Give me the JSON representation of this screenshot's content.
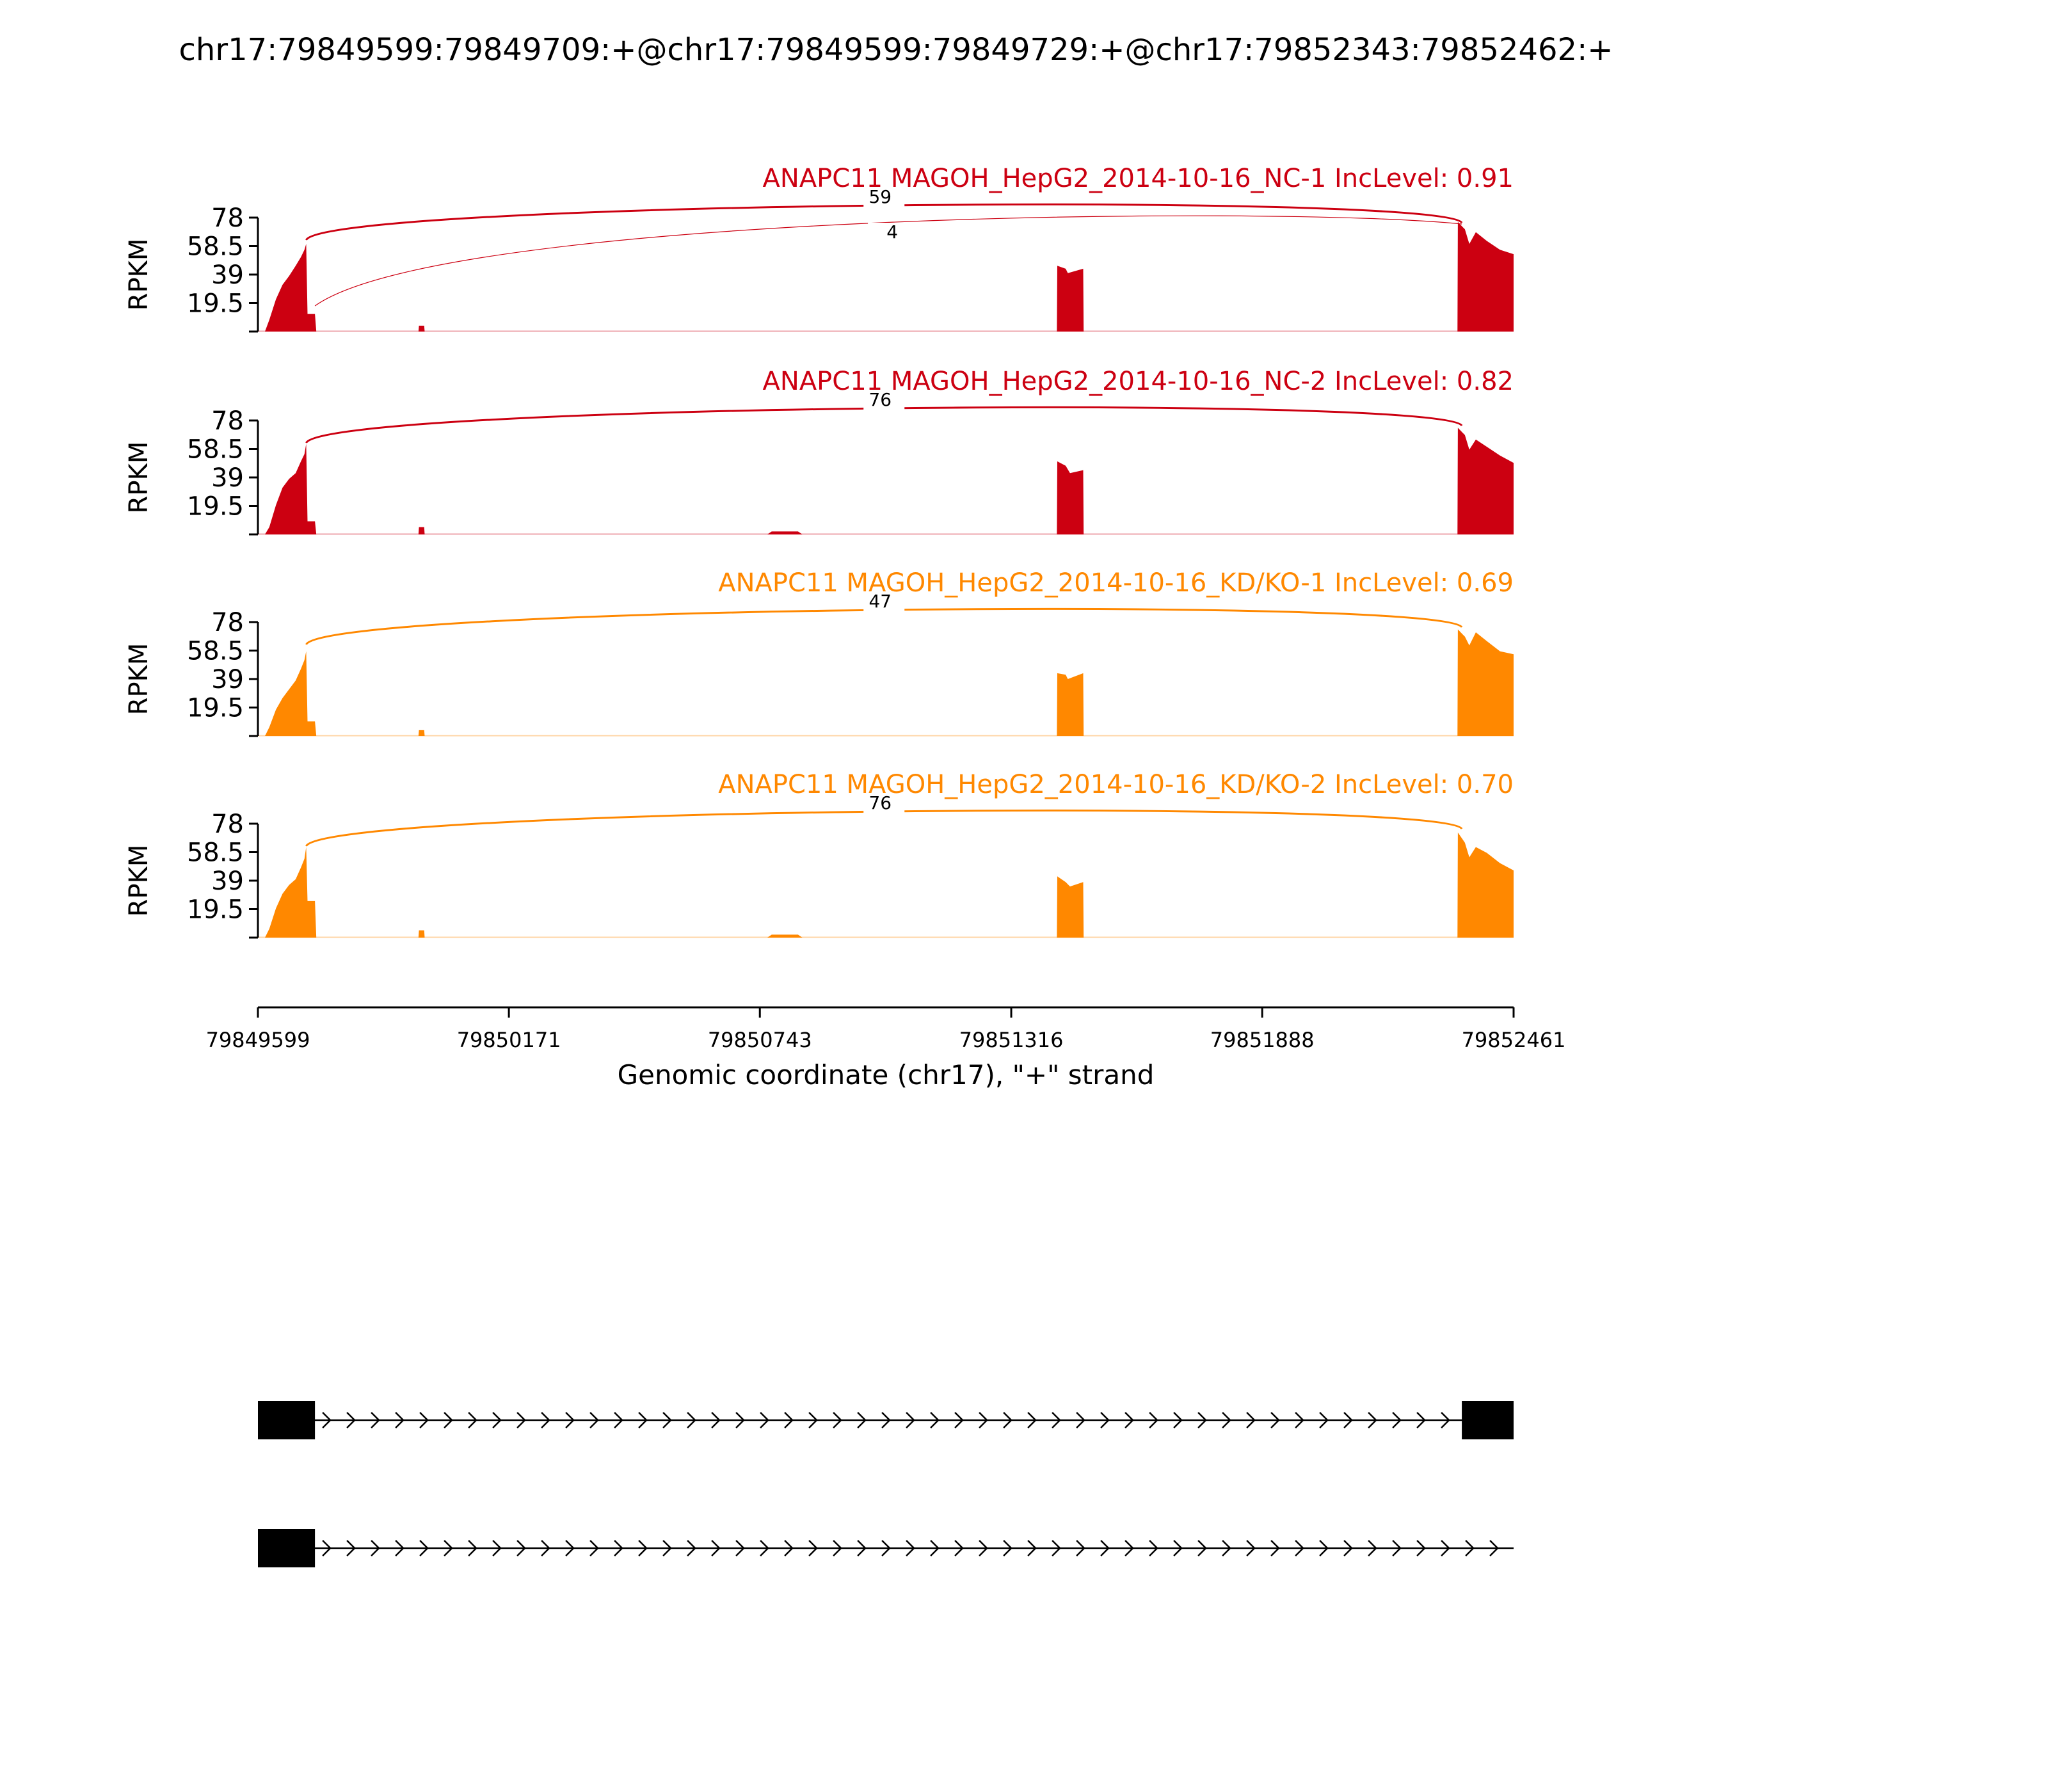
{
  "chart_data": {
    "type": "area",
    "title": "chr17:79849599:79849709:+@chr17:79849599:79849729:+@chr17:79852343:79852462:+",
    "xlabel": "Genomic coordinate (chr17), \"+\" strand",
    "ylabel": "RPKM",
    "xlim": [
      79849599,
      79852461
    ],
    "ylim": [
      0,
      78
    ],
    "x_ticks": [
      "79849599",
      "79850171",
      "79850743",
      "79851316",
      "79851888",
      "79852461"
    ],
    "y_ticks": [
      "19.5",
      "39",
      "58.5",
      "78"
    ],
    "panels": [
      {
        "title": "ANAPC11 MAGOH_HepG2_2014-10-16_NC-1 IncLevel: 0.91",
        "color": "#cc0011",
        "junctions": [
          {
            "start": 79849709,
            "end": 79852343,
            "count": "59",
            "weight": "heavy"
          },
          {
            "start": 79849729,
            "end": 79852343,
            "count": "4",
            "weight": "light"
          }
        ],
        "coverage": [
          [
            79849615,
            0
          ],
          [
            79849625,
            8
          ],
          [
            79849640,
            22
          ],
          [
            79849655,
            32
          ],
          [
            79849670,
            38
          ],
          [
            79849685,
            45
          ],
          [
            79849697,
            51
          ],
          [
            79849705,
            56
          ],
          [
            79849709,
            60
          ],
          [
            79849712,
            12
          ],
          [
            79849729,
            12
          ],
          [
            79849732,
            0
          ],
          [
            79849965,
            0
          ],
          [
            79849966,
            4
          ],
          [
            79849978,
            4
          ],
          [
            79849979,
            0
          ],
          [
            79851420,
            0
          ],
          [
            79851421,
            45
          ],
          [
            79851440,
            43
          ],
          [
            79851445,
            40
          ],
          [
            79851480,
            43
          ],
          [
            79851481,
            0
          ],
          [
            79852333,
            0
          ],
          [
            79852334,
            75
          ],
          [
            79852350,
            70
          ],
          [
            79852360,
            60
          ],
          [
            79852375,
            68
          ],
          [
            79852400,
            62
          ],
          [
            79852430,
            56
          ],
          [
            79852461,
            53
          ]
        ]
      },
      {
        "title": "ANAPC11 MAGOH_HepG2_2014-10-16_NC-2 IncLevel: 0.82",
        "color": "#cc0011",
        "junctions": [
          {
            "start": 79849709,
            "end": 79852343,
            "count": "76",
            "weight": "heavy"
          }
        ],
        "coverage": [
          [
            79849615,
            0
          ],
          [
            79849625,
            5
          ],
          [
            79849640,
            20
          ],
          [
            79849655,
            32
          ],
          [
            79849670,
            38
          ],
          [
            79849685,
            42
          ],
          [
            79849697,
            50
          ],
          [
            79849705,
            55
          ],
          [
            79849709,
            62
          ],
          [
            79849712,
            9
          ],
          [
            79849729,
            9
          ],
          [
            79849732,
            0
          ],
          [
            79849965,
            0
          ],
          [
            79849966,
            5
          ],
          [
            79849978,
            5
          ],
          [
            79849979,
            0
          ],
          [
            79850760,
            0
          ],
          [
            79850770,
            2
          ],
          [
            79850830,
            2
          ],
          [
            79850840,
            0
          ],
          [
            79851420,
            0
          ],
          [
            79851421,
            50
          ],
          [
            79851440,
            47
          ],
          [
            79851450,
            42
          ],
          [
            79851480,
            44
          ],
          [
            79851481,
            0
          ],
          [
            79852333,
            0
          ],
          [
            79852334,
            73
          ],
          [
            79852350,
            68
          ],
          [
            79852360,
            58
          ],
          [
            79852375,
            65
          ],
          [
            79852400,
            60
          ],
          [
            79852430,
            54
          ],
          [
            79852461,
            49
          ]
        ]
      },
      {
        "title": "ANAPC11 MAGOH_HepG2_2014-10-16_KD/KO-1 IncLevel: 0.69",
        "color": "#ff8800",
        "junctions": [
          {
            "start": 79849709,
            "end": 79852343,
            "count": "47",
            "weight": "heavy"
          }
        ],
        "coverage": [
          [
            79849615,
            0
          ],
          [
            79849625,
            6
          ],
          [
            79849640,
            18
          ],
          [
            79849655,
            26
          ],
          [
            79849670,
            32
          ],
          [
            79849685,
            38
          ],
          [
            79849697,
            46
          ],
          [
            79849705,
            52
          ],
          [
            79849709,
            58
          ],
          [
            79849712,
            10
          ],
          [
            79849729,
            10
          ],
          [
            79849732,
            0
          ],
          [
            79849965,
            0
          ],
          [
            79849966,
            4
          ],
          [
            79849978,
            4
          ],
          [
            79849979,
            0
          ],
          [
            79851420,
            0
          ],
          [
            79851421,
            43
          ],
          [
            79851440,
            42
          ],
          [
            79851445,
            39
          ],
          [
            79851480,
            43
          ],
          [
            79851481,
            0
          ],
          [
            79852333,
            0
          ],
          [
            79852334,
            73
          ],
          [
            79852350,
            68
          ],
          [
            79852360,
            62
          ],
          [
            79852375,
            71
          ],
          [
            79852400,
            65
          ],
          [
            79852430,
            58
          ],
          [
            79852461,
            56
          ]
        ]
      },
      {
        "title": "ANAPC11 MAGOH_HepG2_2014-10-16_KD/KO-2 IncLevel: 0.70",
        "color": "#ff8800",
        "junctions": [
          {
            "start": 79849709,
            "end": 79852343,
            "count": "76",
            "weight": "heavy"
          }
        ],
        "coverage": [
          [
            79849615,
            0
          ],
          [
            79849625,
            6
          ],
          [
            79849640,
            20
          ],
          [
            79849655,
            30
          ],
          [
            79849670,
            36
          ],
          [
            79849685,
            40
          ],
          [
            79849697,
            48
          ],
          [
            79849705,
            54
          ],
          [
            79849709,
            62
          ],
          [
            79849712,
            25
          ],
          [
            79849729,
            25
          ],
          [
            79849732,
            0
          ],
          [
            79849965,
            0
          ],
          [
            79849966,
            5
          ],
          [
            79849978,
            5
          ],
          [
            79849979,
            0
          ],
          [
            79850760,
            0
          ],
          [
            79850770,
            2
          ],
          [
            79850830,
            2
          ],
          [
            79850840,
            0
          ],
          [
            79851420,
            0
          ],
          [
            79851421,
            42
          ],
          [
            79851440,
            38
          ],
          [
            79851450,
            35
          ],
          [
            79851480,
            38
          ],
          [
            79851481,
            0
          ],
          [
            79852333,
            0
          ],
          [
            79852334,
            72
          ],
          [
            79852350,
            65
          ],
          [
            79852360,
            55
          ],
          [
            79852375,
            62
          ],
          [
            79852400,
            58
          ],
          [
            79852430,
            51
          ],
          [
            79852461,
            46
          ]
        ]
      }
    ],
    "transcripts": [
      {
        "exons": [
          [
            79849599,
            79849729
          ],
          [
            79852343,
            79852461
          ]
        ],
        "strand": "+"
      },
      {
        "exons": [
          [
            79849599,
            79849729
          ]
        ],
        "strand": "+"
      }
    ]
  }
}
